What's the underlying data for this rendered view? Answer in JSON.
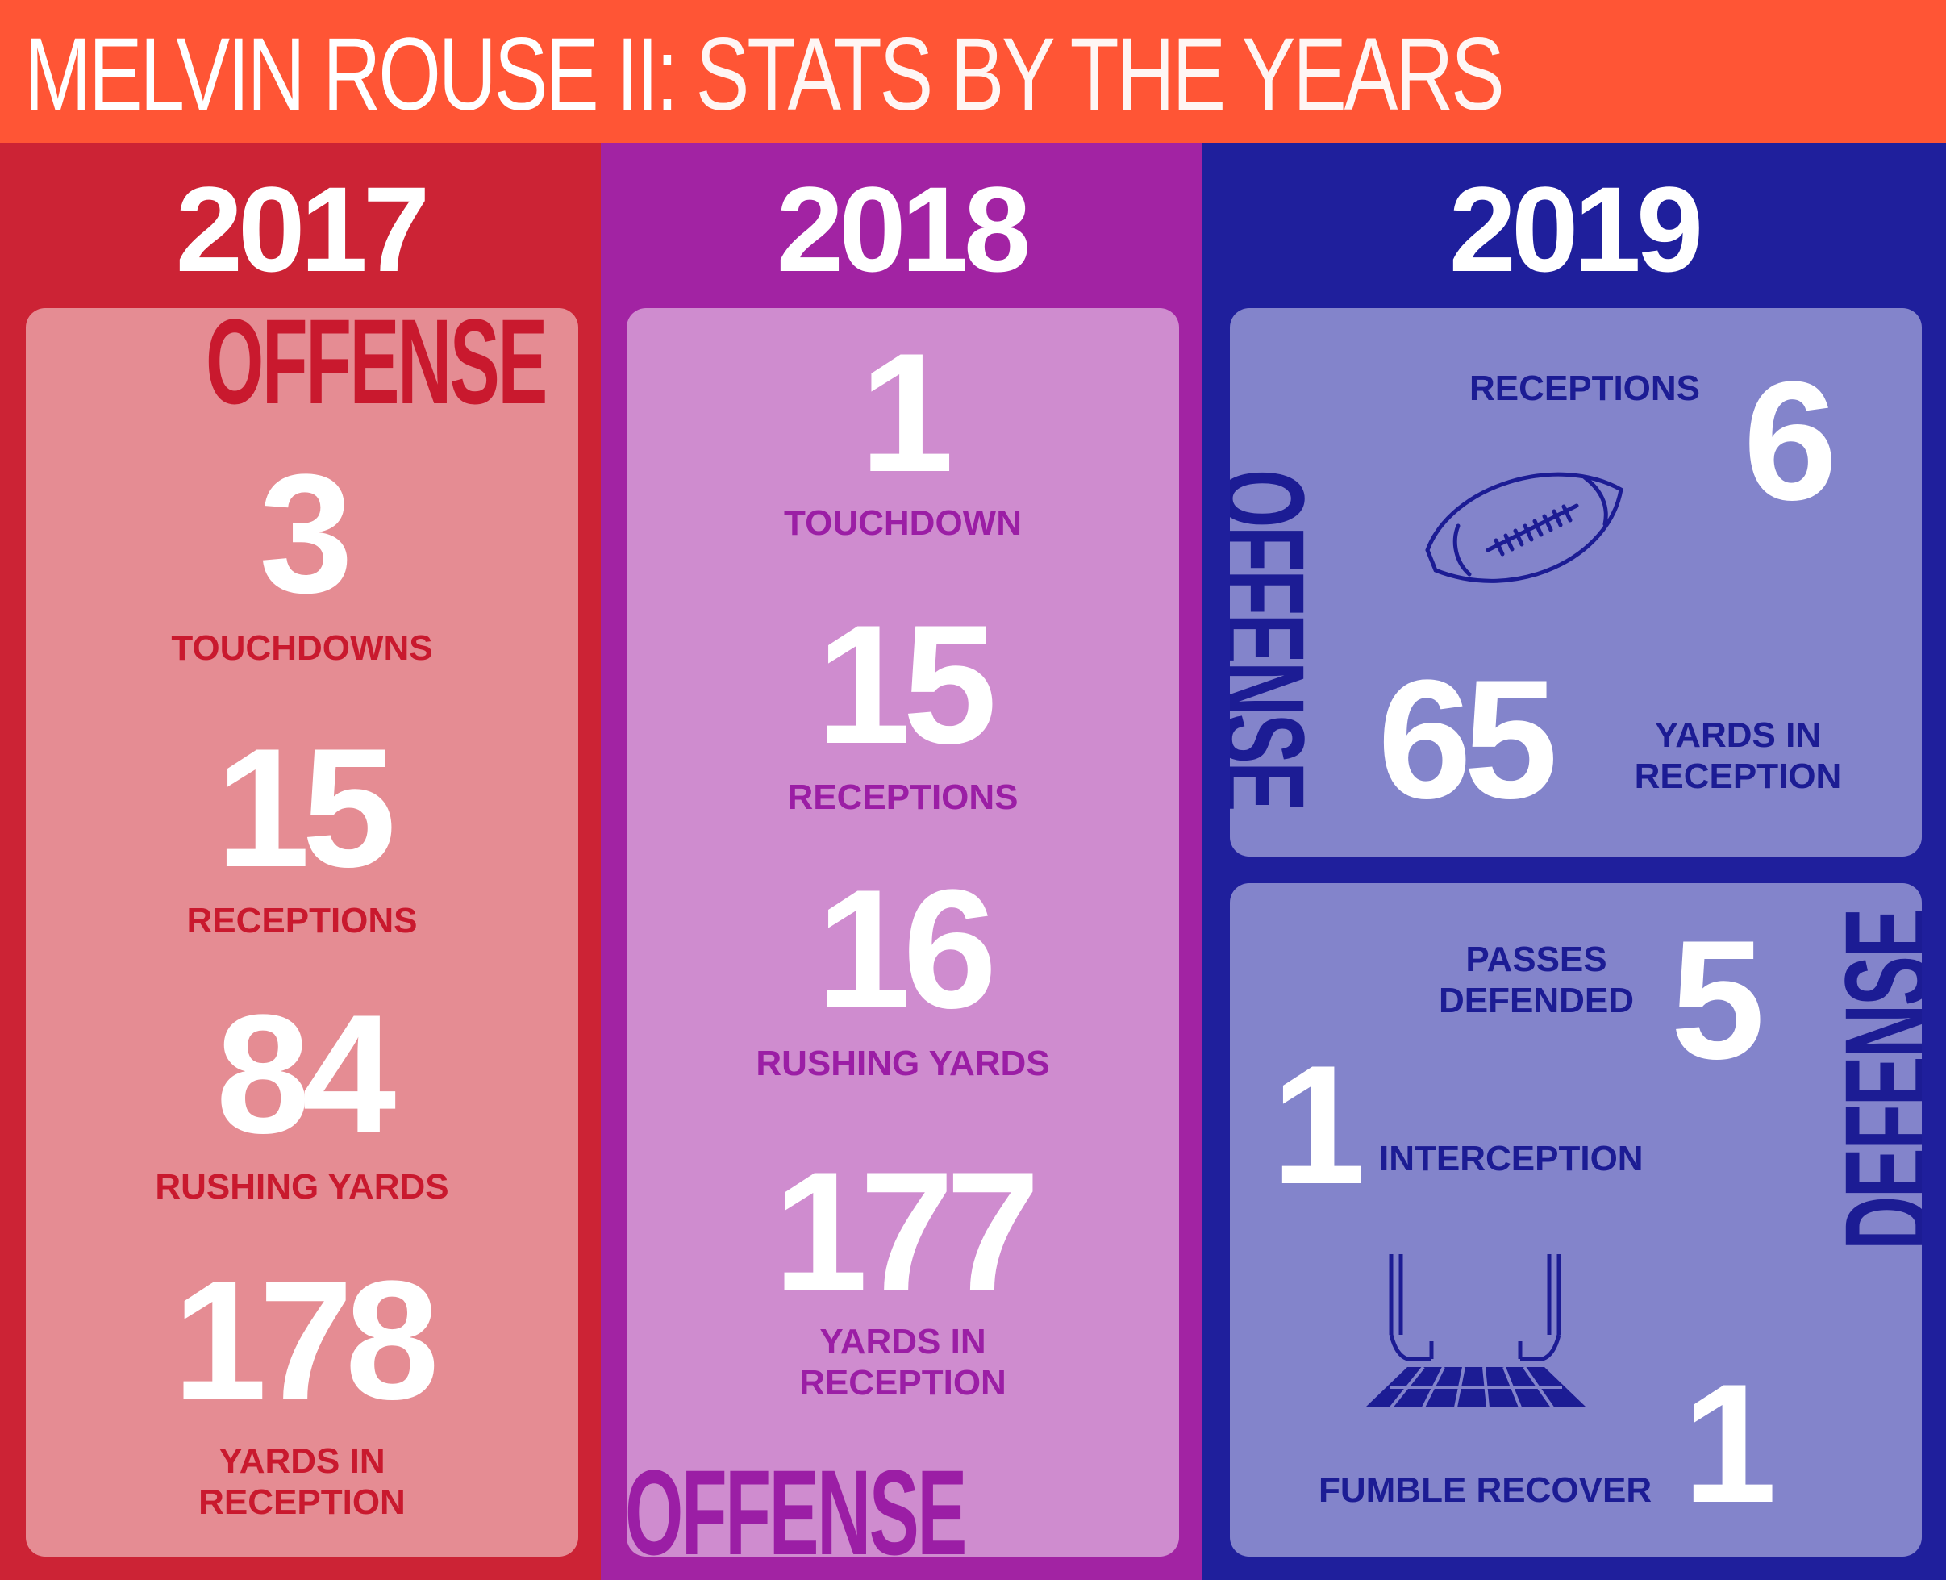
{
  "header": {
    "title_bold": "MELVIN ROUSE II:",
    "title_light": "STATS BY THE YEARS"
  },
  "y2017": {
    "year": "2017",
    "side": "OFFENSE",
    "stats": [
      {
        "value": "3",
        "label": "TOUCHDOWNS"
      },
      {
        "value": "15",
        "label": "RECEPTIONS"
      },
      {
        "value": "84",
        "label": "RUSHING YARDS"
      },
      {
        "value": "178",
        "label_line1": "YARDS IN",
        "label_line2": "RECEPTION"
      }
    ]
  },
  "y2018": {
    "year": "2018",
    "side": "OFFENSE",
    "stats": [
      {
        "value": "1",
        "label": "TOUCHDOWN"
      },
      {
        "value": "15",
        "label": "RECEPTIONS"
      },
      {
        "value": "16",
        "label": "RUSHING YARDS"
      },
      {
        "value": "177",
        "label_line1": "YARDS IN",
        "label_line2": "RECEPTION"
      }
    ]
  },
  "y2019": {
    "year": "2019",
    "offense": {
      "side": "OFFENSE",
      "receptions_label": "RECEPTIONS",
      "receptions_value": "6",
      "yards_value": "65",
      "yards_label_line1": "YARDS IN",
      "yards_label_line2": "RECEPTION"
    },
    "defense": {
      "side": "DEFENSE",
      "passes_label_line1": "PASSES",
      "passes_label_line2": "DEFENDED",
      "passes_value": "5",
      "interception_value": "1",
      "interception_label": "INTERCEPTION",
      "fumble_label": "FUMBLE RECOVER",
      "fumble_value": "1"
    }
  },
  "icons": [
    "football-icon",
    "goalpost-icon"
  ],
  "colors": {
    "header": "#ff5535",
    "col2017": "#cc2335",
    "panel2017": "#e58c93",
    "col2018": "#a223a3",
    "panel2018": "#cf8ccf",
    "col2019": "#1f1f9c",
    "panel2019": "#8384cb"
  }
}
